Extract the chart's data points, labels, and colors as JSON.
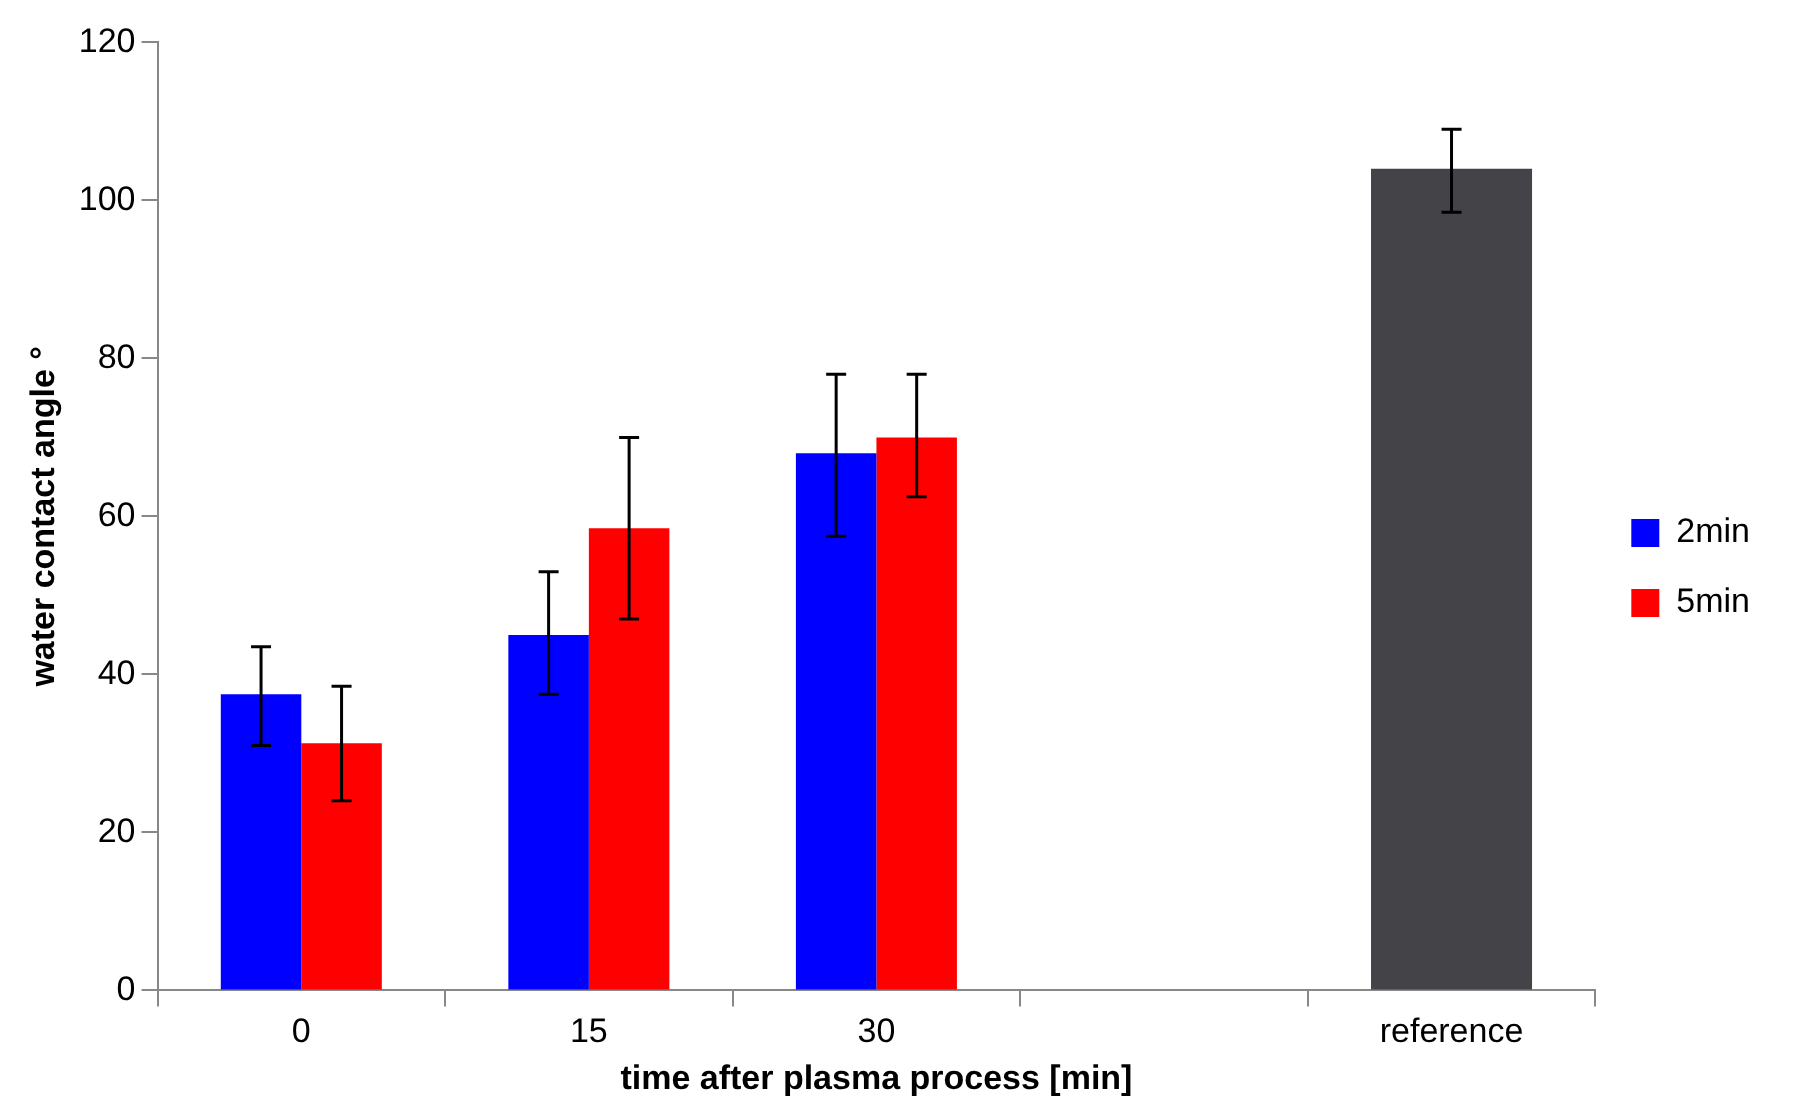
{
  "chart_data": {
    "type": "bar",
    "xlabel": "time after plasma process [min]",
    "ylabel": "water contact angle °",
    "categories": [
      "0",
      "15",
      "30",
      null,
      "reference"
    ],
    "series": [
      {
        "name": "2min",
        "color": "#0000ff",
        "values": [
          37.5,
          45,
          68,
          null,
          null
        ],
        "errors": [
          [
            31,
            43.5
          ],
          [
            37.5,
            53
          ],
          [
            57.5,
            78
          ],
          null,
          null
        ]
      },
      {
        "name": "5min",
        "color": "#ff0000",
        "values": [
          31.3,
          58.5,
          70,
          null,
          null
        ],
        "errors": [
          [
            24,
            38.5
          ],
          [
            47,
            70
          ],
          [
            62.5,
            78
          ],
          null,
          null
        ]
      },
      {
        "color": "#444448",
        "values": [
          null,
          null,
          null,
          null,
          104
        ],
        "errors": [
          null,
          null,
          null,
          null,
          [
            98.5,
            109
          ]
        ]
      }
    ],
    "ylim": [
      0,
      120
    ],
    "yticks": [
      0,
      20,
      40,
      60,
      80,
      100,
      120
    ],
    "grid": false,
    "legend": "right"
  }
}
